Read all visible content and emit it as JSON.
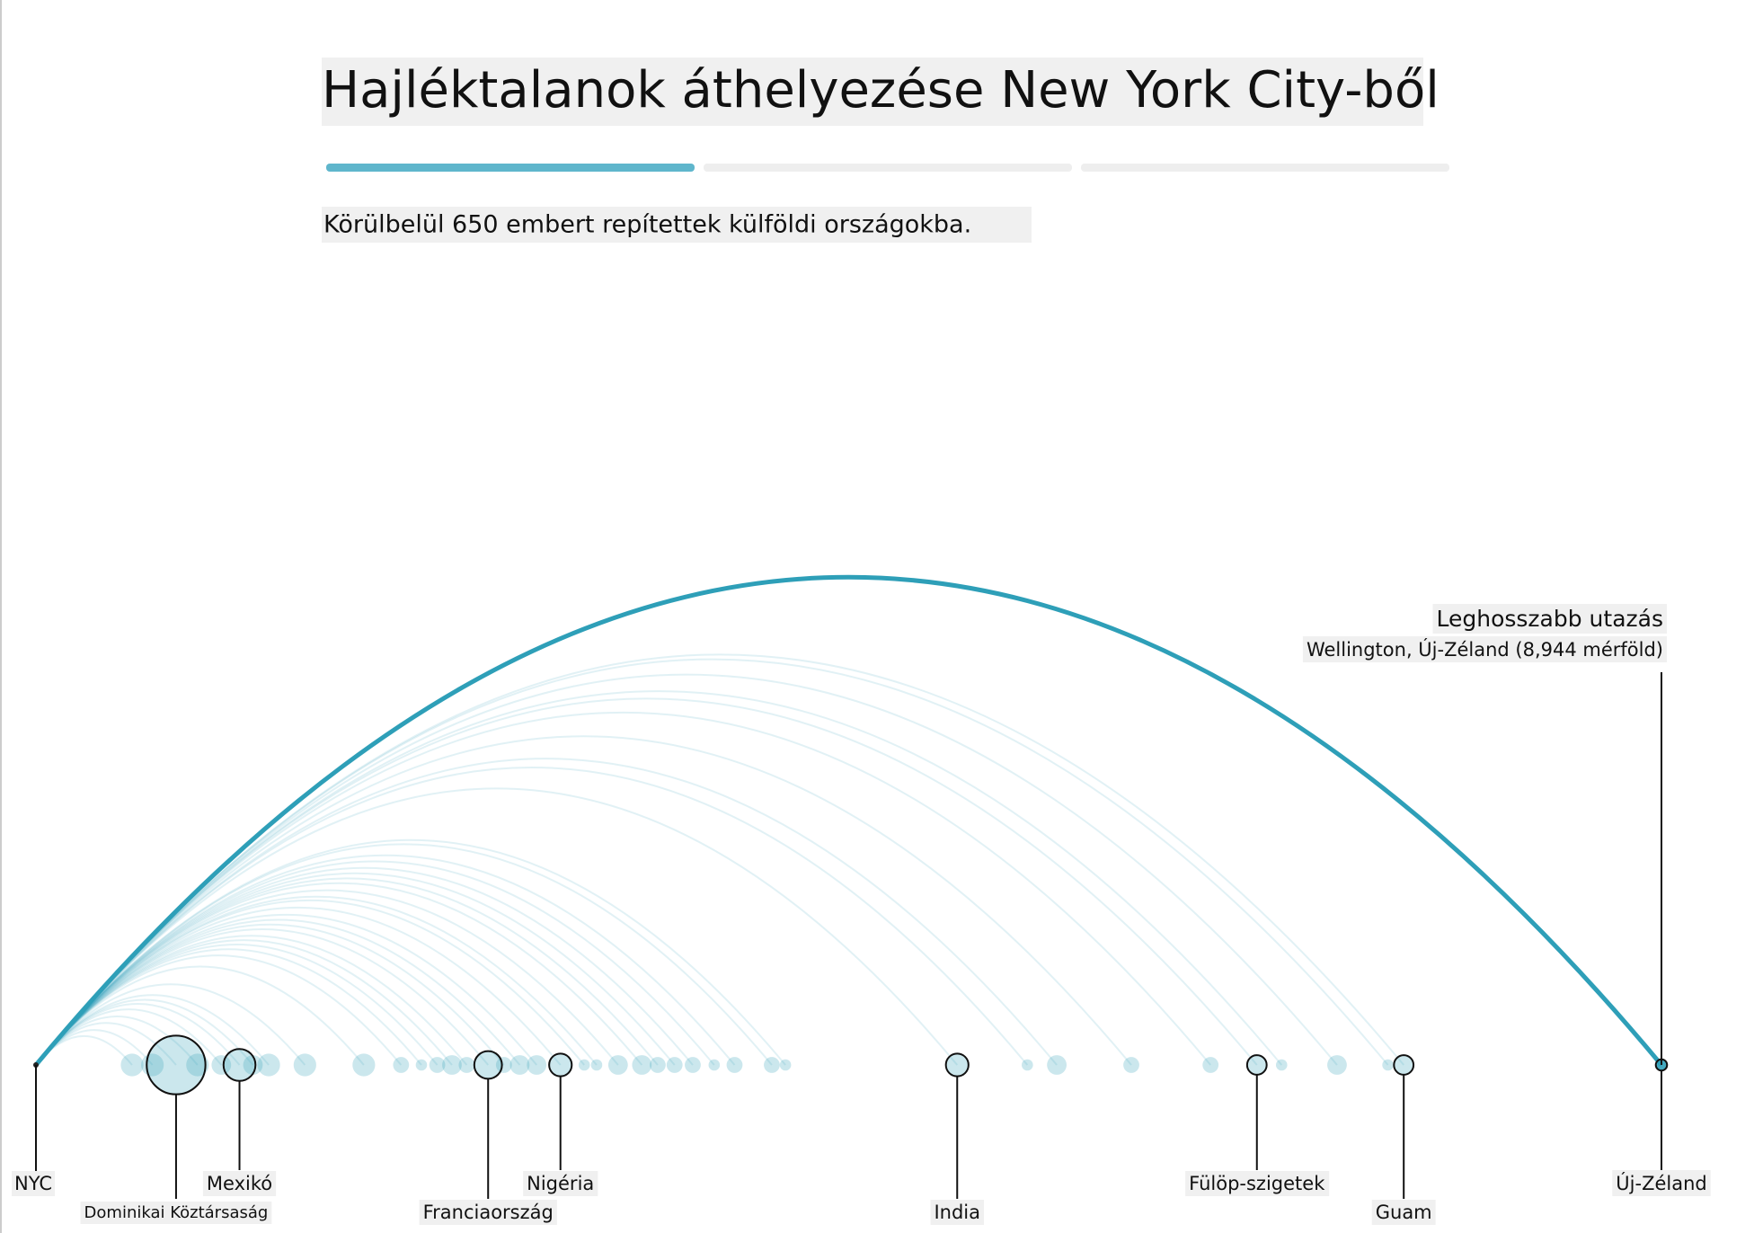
{
  "chart_data": {
    "type": "arc",
    "title": "Hajléktalanok áthelyezése New York City-ből",
    "subtitle": "Körülbelül 650 embert repítettek külföldi országokba.",
    "origin": "NYC",
    "annotation_title": "Leghosszabb utazás",
    "annotation_text": "Wellington, Új-Zéland (8,944 mérföld)",
    "xlim": [
      0,
      8944
    ],
    "color": "#2e9fb8",
    "x": [
      529,
      641,
      771,
      889,
      1020,
      1120,
      1194,
      1281,
      1480,
      1804,
      2009,
      2121,
      2208,
      2289,
      2370,
      2488,
      2575,
      2662,
      2755,
      2886,
      3017,
      3085,
      3203,
      3334,
      3421,
      3514,
      3614,
      3732,
      3844,
      4049,
      4124,
      5069,
      5455,
      5617,
      6027,
      6463,
      6718,
      6854,
      7159,
      7439,
      7526,
      8944
    ],
    "values": [
      4,
      4,
      27,
      4,
      3,
      8,
      3,
      4,
      4,
      4,
      2,
      1,
      2,
      3,
      2,
      6,
      2,
      3,
      3,
      4,
      1,
      1,
      3,
      3,
      2,
      2,
      2,
      1,
      2,
      2,
      1,
      4,
      1,
      3,
      2,
      2,
      3,
      1,
      3,
      1,
      3,
      1
    ],
    "labels": [
      null,
      null,
      "Dominikai Köztársaság",
      null,
      null,
      "Mexikó",
      null,
      null,
      null,
      null,
      null,
      null,
      null,
      null,
      null,
      "Franciaország",
      null,
      null,
      null,
      "Nigéria",
      null,
      null,
      null,
      null,
      null,
      null,
      null,
      null,
      null,
      null,
      null,
      "India",
      null,
      null,
      null,
      null,
      "Fülöp-szigetek",
      null,
      null,
      null,
      "Guam",
      "Új-Zéland"
    ]
  }
}
